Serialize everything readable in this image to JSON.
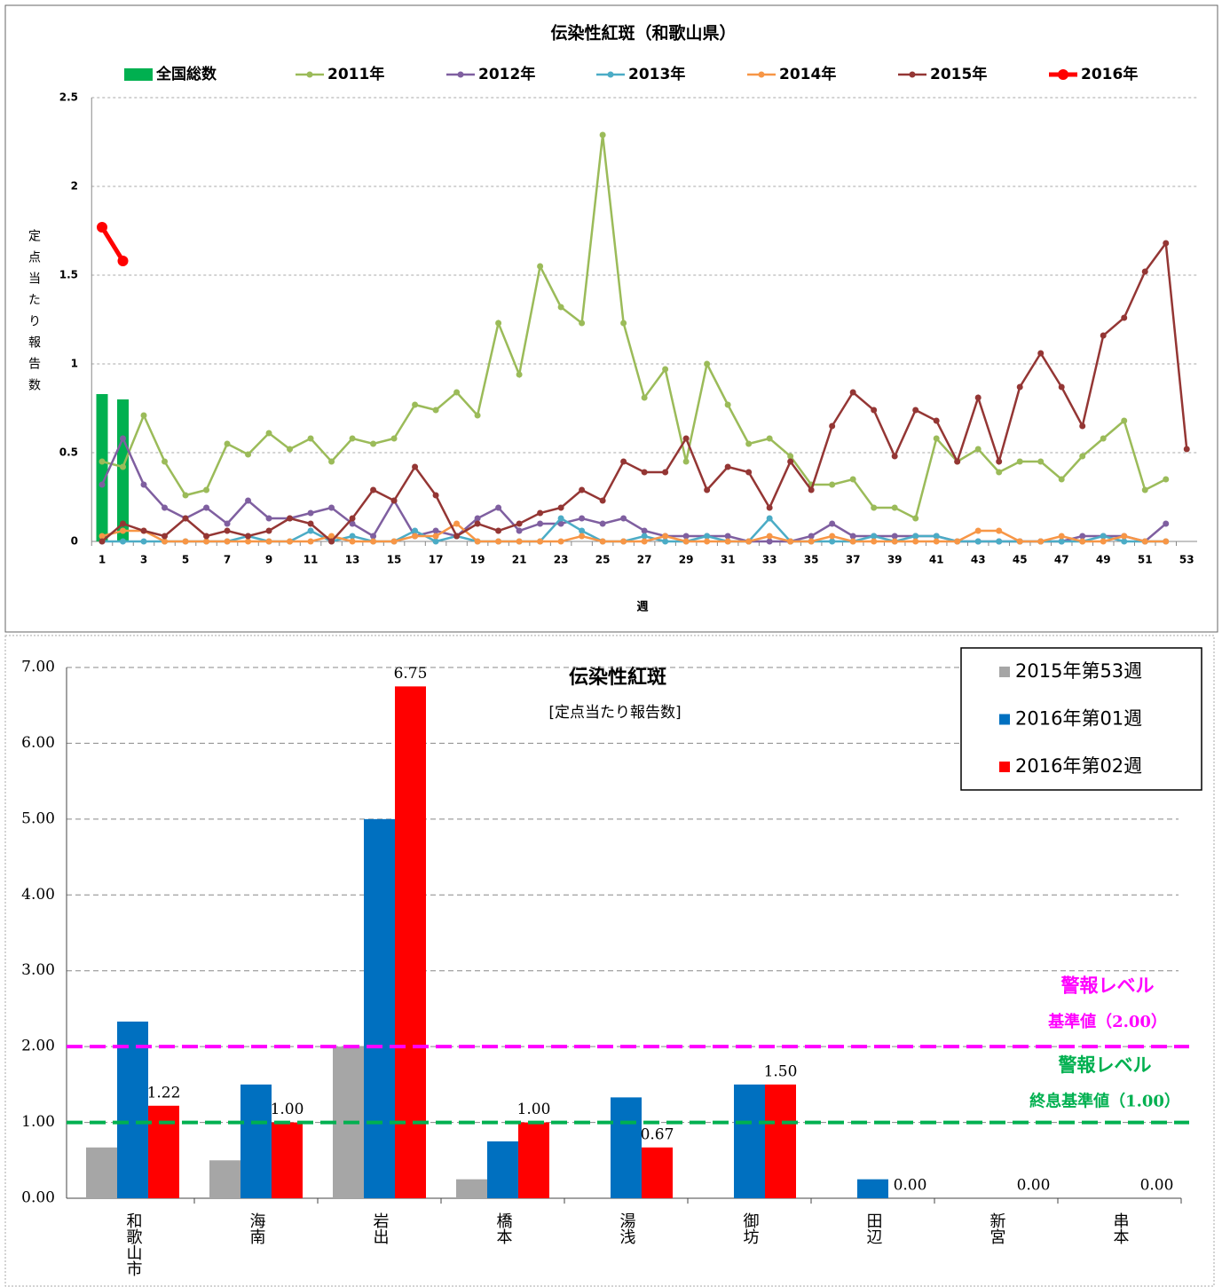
{
  "chart_data": [
    {
      "type": "line",
      "title": "伝染性紅斑（和歌山県）",
      "y_label": "定点当たり報告数",
      "x_label": "週",
      "categories": [
        "1",
        null,
        "3",
        null,
        "5",
        null,
        "7",
        null,
        "9",
        null,
        "11",
        null,
        "13",
        null,
        "15",
        null,
        "17",
        null,
        "19",
        null,
        "21",
        null,
        "23",
        null,
        "25",
        null,
        "27",
        null,
        "29",
        null,
        "31",
        null,
        "33",
        null,
        "35",
        null,
        "37",
        null,
        "39",
        null,
        "41",
        null,
        "43",
        null,
        "45",
        null,
        "47",
        null,
        "49",
        null,
        "51",
        null,
        "53"
      ],
      "ylim": [
        0,
        2.5
      ],
      "yticks": [
        0,
        0.5,
        1,
        1.5,
        2,
        2.5
      ],
      "grid": true,
      "legend": "top",
      "series": [
        {
          "name": "全国総数",
          "type": "bar",
          "color": "#00b050",
          "values": [
            0.83,
            0.8,
            null,
            null,
            null,
            null,
            null,
            null,
            null,
            null,
            null,
            null,
            null,
            null,
            null,
            null,
            null,
            null,
            null,
            null,
            null,
            null,
            null,
            null,
            null,
            null,
            null,
            null,
            null,
            null,
            null,
            null,
            null,
            null,
            null,
            null,
            null,
            null,
            null,
            null,
            null,
            null,
            null,
            null,
            null,
            null,
            null,
            null,
            null,
            null,
            null,
            null,
            null
          ]
        },
        {
          "name": "2011年",
          "color": "#9bbb59",
          "values": [
            0.45,
            0.42,
            0.71,
            0.45,
            0.26,
            0.29,
            0.55,
            0.49,
            0.61,
            0.52,
            0.58,
            0.45,
            0.58,
            0.55,
            0.58,
            0.77,
            0.74,
            0.84,
            0.71,
            1.23,
            0.94,
            1.55,
            1.32,
            1.23,
            2.29,
            1.23,
            0.81,
            0.97,
            0.45,
            1.0,
            0.77,
            0.55,
            0.58,
            0.48,
            0.32,
            0.32,
            0.35,
            0.19,
            0.19,
            0.13,
            0.58,
            0.45,
            0.52,
            0.39,
            0.45,
            0.45,
            0.35,
            0.48,
            0.58,
            0.68,
            0.29,
            0.35,
            null
          ]
        },
        {
          "name": "2012年",
          "color": "#7f5fa0",
          "values": [
            0.32,
            0.58,
            0.32,
            0.19,
            0.13,
            0.19,
            0.1,
            0.23,
            0.13,
            0.13,
            0.16,
            0.19,
            0.1,
            0.03,
            0.23,
            0.03,
            0.06,
            0.03,
            0.13,
            0.19,
            0.06,
            0.1,
            0.1,
            0.13,
            0.1,
            0.13,
            0.06,
            0.03,
            0.03,
            0.03,
            0.03,
            0,
            0,
            0,
            0.03,
            0.1,
            0.03,
            0.03,
            0.03,
            0.03,
            0.03,
            0,
            0,
            0,
            0,
            0,
            0,
            0.03,
            0.03,
            0.03,
            0,
            0.1,
            null
          ]
        },
        {
          "name": "2013年",
          "color": "#4bacc6",
          "values": [
            0,
            0,
            0,
            0,
            0,
            0,
            0,
            0.03,
            0,
            0,
            0.06,
            0,
            0.03,
            0,
            0,
            0.06,
            0,
            0.03,
            0,
            0,
            0,
            0,
            0.13,
            0.06,
            0,
            0,
            0.03,
            0,
            0,
            0.03,
            0,
            0,
            0.13,
            0,
            0,
            0,
            0,
            0.03,
            0,
            0.03,
            0.03,
            0,
            0,
            0,
            0,
            0,
            0,
            0,
            0.03,
            0,
            0,
            0,
            null
          ]
        },
        {
          "name": "2014年",
          "color": "#f79646",
          "values": [
            0.03,
            0.06,
            0.06,
            0,
            0,
            0,
            0,
            0,
            0,
            0,
            0,
            0.03,
            0,
            0,
            0,
            0.03,
            0.03,
            0.1,
            0,
            0,
            0,
            0,
            0,
            0.03,
            0,
            0,
            0,
            0.03,
            0,
            0,
            0,
            0,
            0.03,
            0,
            0,
            0.03,
            0,
            0,
            0,
            0,
            0,
            0,
            0.06,
            0.06,
            0,
            0,
            0.03,
            0,
            0,
            0.03,
            0,
            0,
            null
          ]
        },
        {
          "name": "2015年",
          "color": "#943634",
          "values": [
            0,
            0.1,
            0.06,
            0.03,
            0.13,
            0.03,
            0.06,
            0.03,
            0.06,
            0.13,
            0.1,
            0,
            0.13,
            0.29,
            0.23,
            0.42,
            0.26,
            0.03,
            0.1,
            0.06,
            0.1,
            0.16,
            0.19,
            0.29,
            0.23,
            0.45,
            0.39,
            0.39,
            0.58,
            0.29,
            0.42,
            0.39,
            0.19,
            0.45,
            0.29,
            0.65,
            0.84,
            0.74,
            0.48,
            0.74,
            0.68,
            0.45,
            0.81,
            0.45,
            0.87,
            1.06,
            0.87,
            0.65,
            1.16,
            1.26,
            1.52,
            1.68,
            0.52
          ]
        },
        {
          "name": "2016年",
          "color": "#ff0000",
          "bold": true,
          "values": [
            1.77,
            1.58,
            null,
            null,
            null,
            null,
            null,
            null,
            null,
            null,
            null,
            null,
            null,
            null,
            null,
            null,
            null,
            null,
            null,
            null,
            null,
            null,
            null,
            null,
            null,
            null,
            null,
            null,
            null,
            null,
            null,
            null,
            null,
            null,
            null,
            null,
            null,
            null,
            null,
            null,
            null,
            null,
            null,
            null,
            null,
            null,
            null,
            null,
            null,
            null,
            null,
            null,
            null
          ]
        }
      ]
    },
    {
      "type": "bar",
      "title": "伝染性紅斑",
      "subtitle": "[定点当たり報告数]",
      "categories": [
        "和歌山市",
        "海南",
        "岩出",
        "橋本",
        "湯浅",
        "御坊",
        "田辺",
        "新宮",
        "串本"
      ],
      "ylim": [
        0,
        7
      ],
      "yticks": [
        {
          "value": 0,
          "label": "0.00"
        },
        {
          "value": 1,
          "label": "1.00"
        },
        {
          "value": 2,
          "label": "2.00"
        },
        {
          "value": 3,
          "label": "3.00"
        },
        {
          "value": 4,
          "label": "4.00"
        },
        {
          "value": 5,
          "label": "5.00"
        },
        {
          "value": 6,
          "label": "6.00"
        },
        {
          "value": 7,
          "label": "7.00"
        }
      ],
      "grid": true,
      "legend": "upper right",
      "series": [
        {
          "name": "2015年第53週",
          "color": "#a6a6a6",
          "values": [
            0.67,
            0.5,
            2.0,
            0.25,
            0,
            0,
            0,
            0,
            0
          ]
        },
        {
          "name": "2016年第01週",
          "color": "#0070c0",
          "values": [
            2.33,
            1.5,
            5.0,
            0.75,
            1.33,
            1.5,
            0.25,
            0,
            0
          ]
        },
        {
          "name": "2016年第02週",
          "color": "#ff0000",
          "values": [
            1.22,
            1.0,
            6.75,
            1.0,
            0.67,
            1.5,
            0,
            0,
            0
          ],
          "value_labels": [
            "1.22",
            "1.00",
            "6.75",
            "1.00",
            "0.67",
            "1.50",
            "0.00",
            "0.00",
            "0.00"
          ]
        }
      ],
      "reference_lines": [
        {
          "value": 2,
          "color": "#ff00ff",
          "label_lines": [
            "警報レベル",
            "基準値（2.00）"
          ]
        },
        {
          "value": 1,
          "color": "#00b050",
          "label_lines": [
            "警報レベル",
            "終息基準値（1.00）"
          ]
        }
      ]
    }
  ]
}
